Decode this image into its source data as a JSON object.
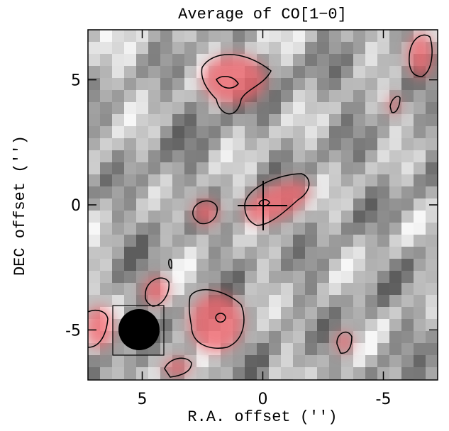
{
  "chart_data": {
    "type": "map",
    "title": "Average of CO[1−0]",
    "x_label": "R.A. offset ('')",
    "y_label": "DEC offset ('')",
    "xlim": [
      7.25,
      -7.25
    ],
    "xticks": [
      5,
      0,
      -5
    ],
    "ylim": [
      -7,
      7
    ],
    "yticks": [
      5,
      0,
      -5
    ]
  }
}
